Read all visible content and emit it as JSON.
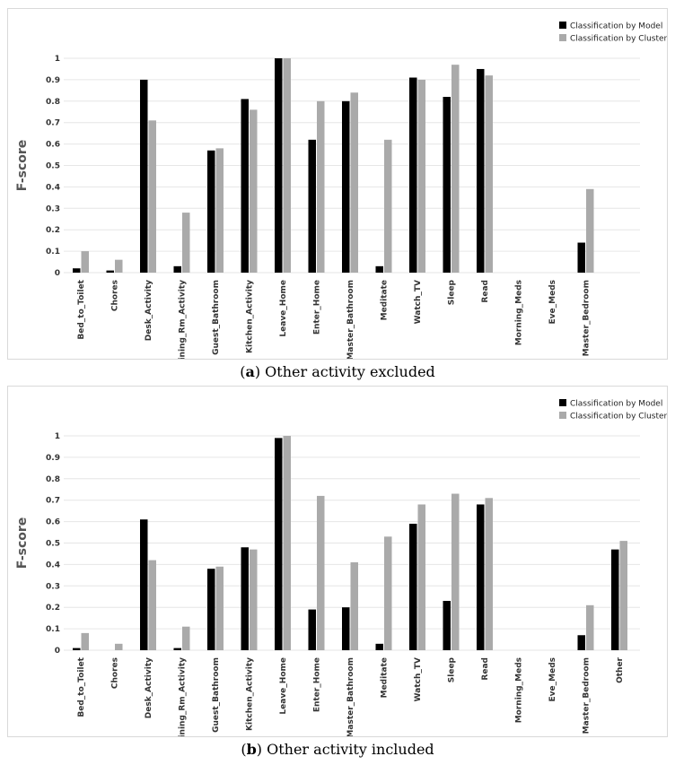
{
  "figure": {
    "captions": [
      {
        "letter": "a",
        "text": "Other activity excluded"
      },
      {
        "letter": "b",
        "text": "Other activity included"
      }
    ]
  },
  "colors": {
    "model": "#000000",
    "cluster": "#aaaaaa",
    "grid": "#e6e6e6"
  },
  "chart_data": [
    {
      "type": "bar",
      "title": "",
      "xlabel": "",
      "ylabel": "F-score",
      "ylim": [
        0,
        1
      ],
      "yticks": [
        "0",
        "0.1",
        "0.2",
        "0.3",
        "0.4",
        "0.5",
        "0.6",
        "0.7",
        "0.8",
        "0.9",
        "1"
      ],
      "legend": "top-right",
      "categories": [
        "Bed_to_Toilet",
        "Chores",
        "Desk_Activity",
        "Dining_Rm_Activity",
        "Guest_Bathroom",
        "Kitchen_Activity",
        "Leave_Home",
        "Enter_Home",
        "Master_Bathroom",
        "Meditate",
        "Watch_TV",
        "Sleep",
        "Read",
        "Morning_Meds",
        "Eve_Meds",
        "Master_Bedroom"
      ],
      "series": [
        {
          "name": "Classification by Model",
          "values": [
            0.02,
            0.01,
            0.9,
            0.03,
            0.57,
            0.81,
            1.0,
            0.62,
            0.8,
            0.03,
            0.91,
            0.82,
            0.95,
            0,
            0,
            0.14
          ]
        },
        {
          "name": "Classification by Cluster",
          "values": [
            0.1,
            0.06,
            0.71,
            0.28,
            0.58,
            0.76,
            1.0,
            0.8,
            0.84,
            0.62,
            0.9,
            0.97,
            0.92,
            0,
            0,
            0.39
          ]
        }
      ]
    },
    {
      "type": "bar",
      "title": "",
      "xlabel": "",
      "ylabel": "F-score",
      "ylim": [
        0,
        1
      ],
      "yticks": [
        "0",
        "0.1",
        "0.2",
        "0.3",
        "0.4",
        "0.5",
        "0.6",
        "0.7",
        "0.8",
        "0.9",
        "1"
      ],
      "legend": "top-right",
      "categories": [
        "Bed_to_Toilet",
        "Chores",
        "Desk_Activity",
        "Dining_Rm_Activity",
        "Guest_Bathroom",
        "Kitchen_Activity",
        "Leave_Home",
        "Enter_Home",
        "Master_Bathroom",
        "Meditate",
        "Watch_TV",
        "Sleep",
        "Read",
        "Morning_Meds",
        "Eve_Meds",
        "Master_Bedroom",
        "Other"
      ],
      "series": [
        {
          "name": "Classification by Model",
          "values": [
            0.01,
            0,
            0.61,
            0.01,
            0.38,
            0.48,
            0.99,
            0.19,
            0.2,
            0.03,
            0.59,
            0.23,
            0.68,
            0,
            0,
            0.07,
            0.47
          ]
        },
        {
          "name": "Classification by Cluster",
          "values": [
            0.08,
            0.03,
            0.42,
            0.11,
            0.39,
            0.47,
            1.0,
            0.72,
            0.41,
            0.53,
            0.68,
            0.73,
            0.71,
            0,
            0,
            0.21,
            0.51
          ]
        }
      ]
    }
  ]
}
